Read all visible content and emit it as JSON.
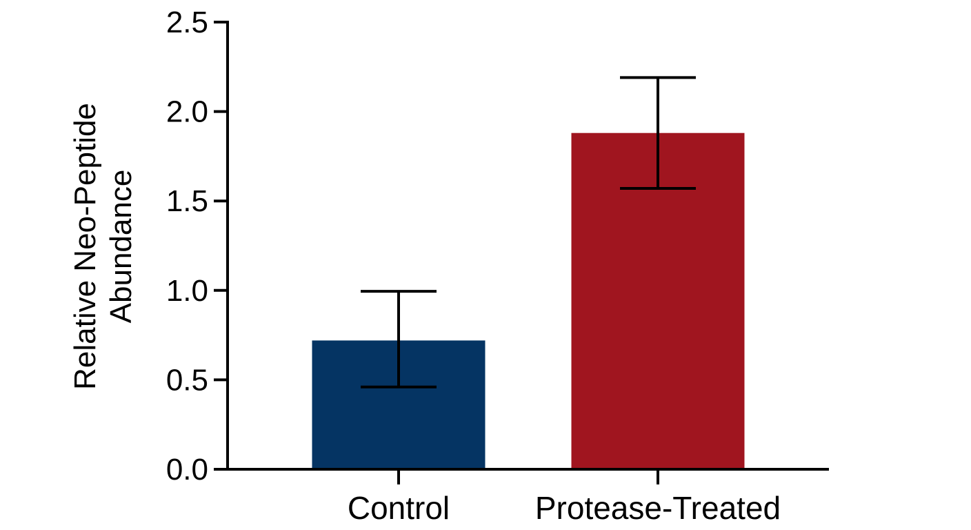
{
  "chart_data": {
    "type": "bar",
    "title": "",
    "xlabel": "",
    "ylabel": [
      "Relative Neo-Peptide",
      "Abundance"
    ],
    "categories": [
      "Control",
      "Protease-Treated"
    ],
    "values": [
      0.72,
      1.88
    ],
    "error_low": [
      0.46,
      1.57
    ],
    "error_high": [
      0.995,
      2.19
    ],
    "colors": [
      "#053463",
      "#A0151F"
    ],
    "ylim": [
      0,
      2.5
    ],
    "yticks": [
      "0.0",
      "0.5",
      "1.0",
      "1.5",
      "2.0",
      "2.5"
    ],
    "grid": false,
    "legend": "none"
  }
}
